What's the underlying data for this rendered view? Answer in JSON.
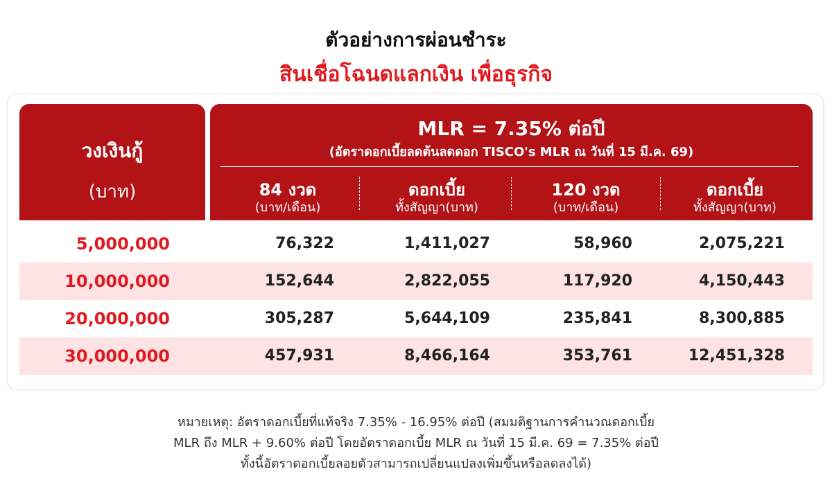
{
  "header": {
    "title": "ตัวอย่างการผ่อนชำระ",
    "subtitle": "สินเชื่อโฉนดแลกเงิน เพื่อธุรกิจ"
  },
  "table": {
    "loan_header": [
      "วงเงินกู้",
      "(บาท)"
    ],
    "rate_title": "MLR = 7.35% ต่อปี",
    "rate_note": "(อัตราดอกเบี้ยลดต้นลดดอก TISCO's MLR ณ วันที่ 15 มี.ค. 69)",
    "columns": [
      [
        "84 งวด",
        "(บาท/เดือน)"
      ],
      [
        "ดอกเบี้ย",
        "ทั้งสัญญา(บาท)"
      ],
      [
        "120 งวด",
        "(บาท/เดือน)"
      ],
      [
        "ดอกเบี้ย",
        "ทั้งสัญญา(บาท)"
      ]
    ],
    "rows": [
      [
        "5,000,000",
        "76,322",
        "1,411,027",
        "58,960",
        "2,075,221"
      ],
      [
        "10,000,000",
        "152,644",
        "2,822,055",
        "117,920",
        "4,150,443"
      ],
      [
        "20,000,000",
        "305,287",
        "5,644,109",
        "235,841",
        "8,300,885"
      ],
      [
        "30,000,000",
        "457,931",
        "8,466,164",
        "353,761",
        "12,451,328"
      ]
    ]
  },
  "note": [
    "หมายเหตุ: อัตราดอกเบี้ยที่แท้จริง 7.35% - 16.95% ต่อปี (สมมติฐานการคำนวณดอกเบี้ย",
    "MLR ถึง MLR + 9.60% ต่อปี โดยอัตราดอกเบี้ย MLR ณ วันที่ 15 มี.ค. 69 = 7.35% ต่อปี",
    "ทั้งนี้อัตราดอกเบี้ยลอยตัวสามารถเปลี่ยนแปลงเพิ่มขึ้นหรือลดลงได้)"
  ]
}
